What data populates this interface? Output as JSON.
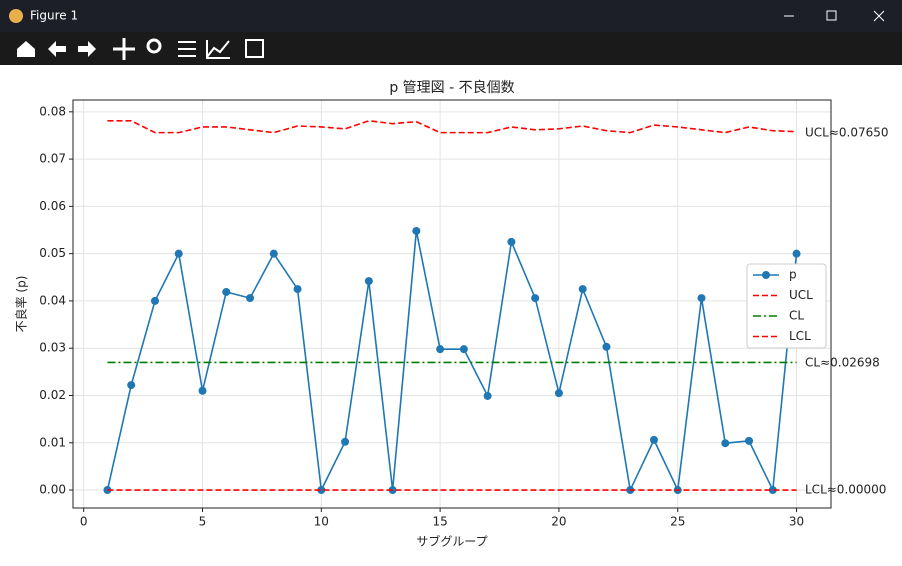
{
  "window_title": "Figure 1",
  "chart_data": {
    "type": "line",
    "title": "p 管理図 - 不良個数",
    "xlabel": "サブグループ",
    "ylabel": "不良率 (p)",
    "x": [
      1,
      2,
      3,
      4,
      5,
      6,
      7,
      8,
      9,
      10,
      11,
      12,
      13,
      14,
      15,
      16,
      17,
      18,
      19,
      20,
      21,
      22,
      23,
      24,
      25,
      26,
      27,
      28,
      29,
      30
    ],
    "series": [
      {
        "name": "p",
        "color": "#1f77b4",
        "style": "solid",
        "marker": true,
        "values": [
          0,
          0.0222,
          0.04,
          0.05,
          0.021,
          0.0419,
          0.0406,
          0.05,
          0.0425,
          0,
          0.0102,
          0.0442,
          0,
          0.0548,
          0.0298,
          0.0298,
          0.0199,
          0.0525,
          0.0406,
          0.0205,
          0.0425,
          0.0303,
          0,
          0.0106,
          0,
          0.0406,
          0.0099,
          0.0104,
          0,
          0.05
        ]
      },
      {
        "name": "UCL",
        "color": "#ff0000",
        "style": "dashed",
        "marker": false,
        "values": [
          0.0781,
          0.0781,
          0.0756,
          0.0756,
          0.0768,
          0.0768,
          0.0762,
          0.0756,
          0.077,
          0.0768,
          0.0764,
          0.0781,
          0.0775,
          0.0779,
          0.0756,
          0.0756,
          0.0756,
          0.0768,
          0.0762,
          0.0764,
          0.077,
          0.076,
          0.0756,
          0.0772,
          0.0768,
          0.0762,
          0.0756,
          0.0768,
          0.076,
          0.0758
        ]
      },
      {
        "name": "CL",
        "color": "#008000",
        "style": "dashdot",
        "marker": false,
        "values": [
          0.02698,
          0.02698,
          0.02698,
          0.02698,
          0.02698,
          0.02698,
          0.02698,
          0.02698,
          0.02698,
          0.02698,
          0.02698,
          0.02698,
          0.02698,
          0.02698,
          0.02698,
          0.02698,
          0.02698,
          0.02698,
          0.02698,
          0.02698,
          0.02698,
          0.02698,
          0.02698,
          0.02698,
          0.02698,
          0.02698,
          0.02698,
          0.02698,
          0.02698,
          0.02698
        ]
      },
      {
        "name": "LCL",
        "color": "#ff0000",
        "style": "dashed",
        "marker": false,
        "values": [
          0,
          0,
          0,
          0,
          0,
          0,
          0,
          0,
          0,
          0,
          0,
          0,
          0,
          0,
          0,
          0,
          0,
          0,
          0,
          0,
          0,
          0,
          0,
          0,
          0,
          0,
          0,
          0,
          0,
          0
        ]
      }
    ],
    "annotations": [
      "UCL≈0.07650",
      "CL≈0.02698",
      "LCL≈0.00000"
    ],
    "xlim": [
      -0.45,
      31.45
    ],
    "xticks": [
      0,
      5,
      10,
      15,
      20,
      25,
      30
    ],
    "ylim": [
      -0.0038,
      0.0825
    ],
    "yticks": [
      {
        "value": 0,
        "label": "0.00"
      },
      {
        "value": 0.01,
        "label": "0.01"
      },
      {
        "value": 0.02,
        "label": "0.02"
      },
      {
        "value": 0.03,
        "label": "0.03"
      },
      {
        "value": 0.04,
        "label": "0.04"
      },
      {
        "value": 0.05,
        "label": "0.05"
      },
      {
        "value": 0.06,
        "label": "0.06"
      },
      {
        "value": 0.07,
        "label": "0.07"
      },
      {
        "value": 0.08,
        "label": "0.08"
      }
    ],
    "grid": true,
    "legend": "right"
  }
}
